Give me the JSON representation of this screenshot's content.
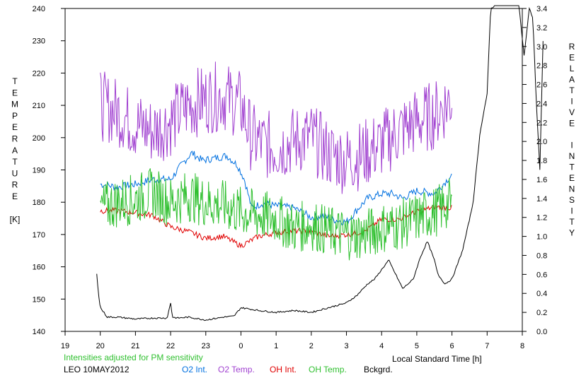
{
  "chart_data": {
    "type": "line",
    "title": "",
    "xlabel": "Local Standard Time [h]",
    "ylabel_left": [
      "T",
      "E",
      "M",
      "P",
      "E",
      "R",
      "A",
      "T",
      "U",
      "R",
      "E",
      "",
      "[K]"
    ],
    "ylabel_right": [
      "R",
      "E",
      "L",
      "A",
      "T",
      "I",
      "V",
      "E",
      "",
      "I",
      "N",
      "T",
      "E",
      "N",
      "S",
      "I",
      "T",
      "Y"
    ],
    "note": "Intensities adjusted for PM sensitivity",
    "station": "LEO 10MAY2012",
    "x_ticks": [
      "19",
      "20",
      "21",
      "22",
      "23",
      "0",
      "1",
      "2",
      "3",
      "4",
      "5",
      "6",
      "7",
      "8"
    ],
    "x_range": [
      19,
      32
    ],
    "y_left_ticks": [
      "140",
      "150",
      "160",
      "170",
      "180",
      "190",
      "200",
      "210",
      "220",
      "230",
      "240"
    ],
    "y_left_range": [
      140,
      240
    ],
    "y_right_ticks": [
      "0.0",
      "0.2",
      "0.4",
      "0.6",
      "0.8",
      "1.0",
      "1.2",
      "1.4",
      "1.6",
      "1.8",
      "2.0",
      "2.2",
      "2.4",
      "2.6",
      "2.8",
      "3.0",
      "3.2",
      "3.4"
    ],
    "y_right_range": [
      0,
      3.4
    ],
    "grid": false,
    "legend_position": "bottom",
    "series": [
      {
        "name": "O2 Int.",
        "axis": "right",
        "color": "#0070e0",
        "x": [
          20.0,
          20.5,
          21.0,
          21.5,
          22.0,
          22.3,
          22.6,
          22.9,
          23.2,
          23.6,
          23.9,
          24.1,
          24.3,
          24.6,
          25.0,
          25.5,
          26.0,
          26.3,
          26.6,
          27.0,
          27.3,
          27.6,
          28.0,
          28.3,
          28.6,
          29.0,
          29.5,
          30.0
        ],
        "values": [
          1.55,
          1.52,
          1.55,
          1.6,
          1.6,
          1.75,
          1.88,
          1.8,
          1.82,
          1.85,
          1.75,
          1.6,
          1.3,
          1.35,
          1.32,
          1.3,
          1.2,
          1.22,
          1.18,
          1.15,
          1.28,
          1.4,
          1.45,
          1.45,
          1.4,
          1.48,
          1.45,
          1.65
        ]
      },
      {
        "name": "O2 Temp.",
        "axis": "left",
        "color": "#a040d0",
        "x": [
          20.0,
          20.5,
          21.0,
          21.5,
          22.0,
          22.5,
          23.0,
          23.5,
          24.0,
          24.3,
          24.6,
          25.0,
          25.5,
          26.0,
          26.5,
          27.0,
          27.5,
          28.0,
          28.5,
          29.0,
          29.5,
          30.0
        ],
        "values": [
          210,
          208,
          204,
          202,
          205,
          210,
          212,
          213,
          210,
          200,
          198,
          197,
          199,
          200,
          195,
          193,
          195,
          198,
          202,
          205,
          207,
          212
        ]
      },
      {
        "name": "OH Int.",
        "axis": "right",
        "color": "#e00000",
        "x": [
          20.0,
          20.5,
          21.0,
          21.5,
          22.0,
          22.5,
          23.0,
          23.5,
          24.0,
          24.5,
          25.0,
          25.5,
          26.0,
          26.5,
          27.0,
          27.5,
          28.0,
          28.5,
          29.0,
          29.5,
          30.0
        ],
        "values": [
          1.27,
          1.27,
          1.25,
          1.22,
          1.1,
          1.05,
          0.98,
          1.0,
          0.9,
          1.0,
          1.04,
          1.06,
          1.05,
          1.0,
          1.02,
          1.05,
          1.18,
          1.18,
          1.26,
          1.31,
          1.3
        ]
      },
      {
        "name": "OH Temp.",
        "axis": "left",
        "color": "#30c030",
        "x": [
          20.0,
          20.5,
          21.0,
          21.5,
          22.0,
          22.5,
          23.0,
          23.5,
          24.0,
          24.5,
          25.0,
          25.5,
          26.0,
          26.5,
          27.0,
          27.5,
          28.0,
          28.5,
          29.0,
          29.5,
          30.0
        ],
        "values": [
          178,
          180,
          181,
          183,
          180,
          182,
          180,
          179,
          177,
          176,
          175,
          172,
          173,
          171,
          170,
          170,
          172,
          173,
          175,
          177,
          180
        ]
      },
      {
        "name": "Bckgrd.",
        "axis": "right",
        "color": "#000000",
        "x": [
          19.9,
          19.95,
          20.0,
          20.2,
          20.5,
          21.0,
          21.5,
          21.9,
          22.0,
          22.05,
          22.2,
          22.5,
          23.0,
          23.5,
          23.8,
          24.0,
          24.5,
          25.0,
          25.5,
          26.0,
          26.5,
          27.0,
          27.3,
          27.6,
          27.8,
          28.0,
          28.2,
          28.4,
          28.6,
          28.9,
          29.1,
          29.3,
          29.5,
          29.6,
          29.8,
          30.0,
          30.3,
          30.6,
          30.8,
          31.0,
          31.1,
          31.3,
          31.5,
          31.7,
          31.9,
          32.05,
          32.2,
          32.3,
          32.4,
          32.5,
          32.6
        ],
        "values": [
          0.6,
          0.4,
          0.25,
          0.15,
          0.15,
          0.13,
          0.14,
          0.14,
          0.3,
          0.15,
          0.14,
          0.15,
          0.12,
          0.15,
          0.16,
          0.25,
          0.22,
          0.2,
          0.22,
          0.2,
          0.25,
          0.3,
          0.38,
          0.5,
          0.55,
          0.65,
          0.75,
          0.6,
          0.45,
          0.55,
          0.78,
          0.95,
          0.75,
          0.6,
          0.5,
          0.55,
          0.85,
          1.35,
          2.1,
          2.5,
          3.4,
          3.45,
          3.45,
          3.45,
          3.45,
          2.9,
          3.4,
          3.3,
          2.4,
          1.7,
          3.2
        ]
      }
    ]
  }
}
